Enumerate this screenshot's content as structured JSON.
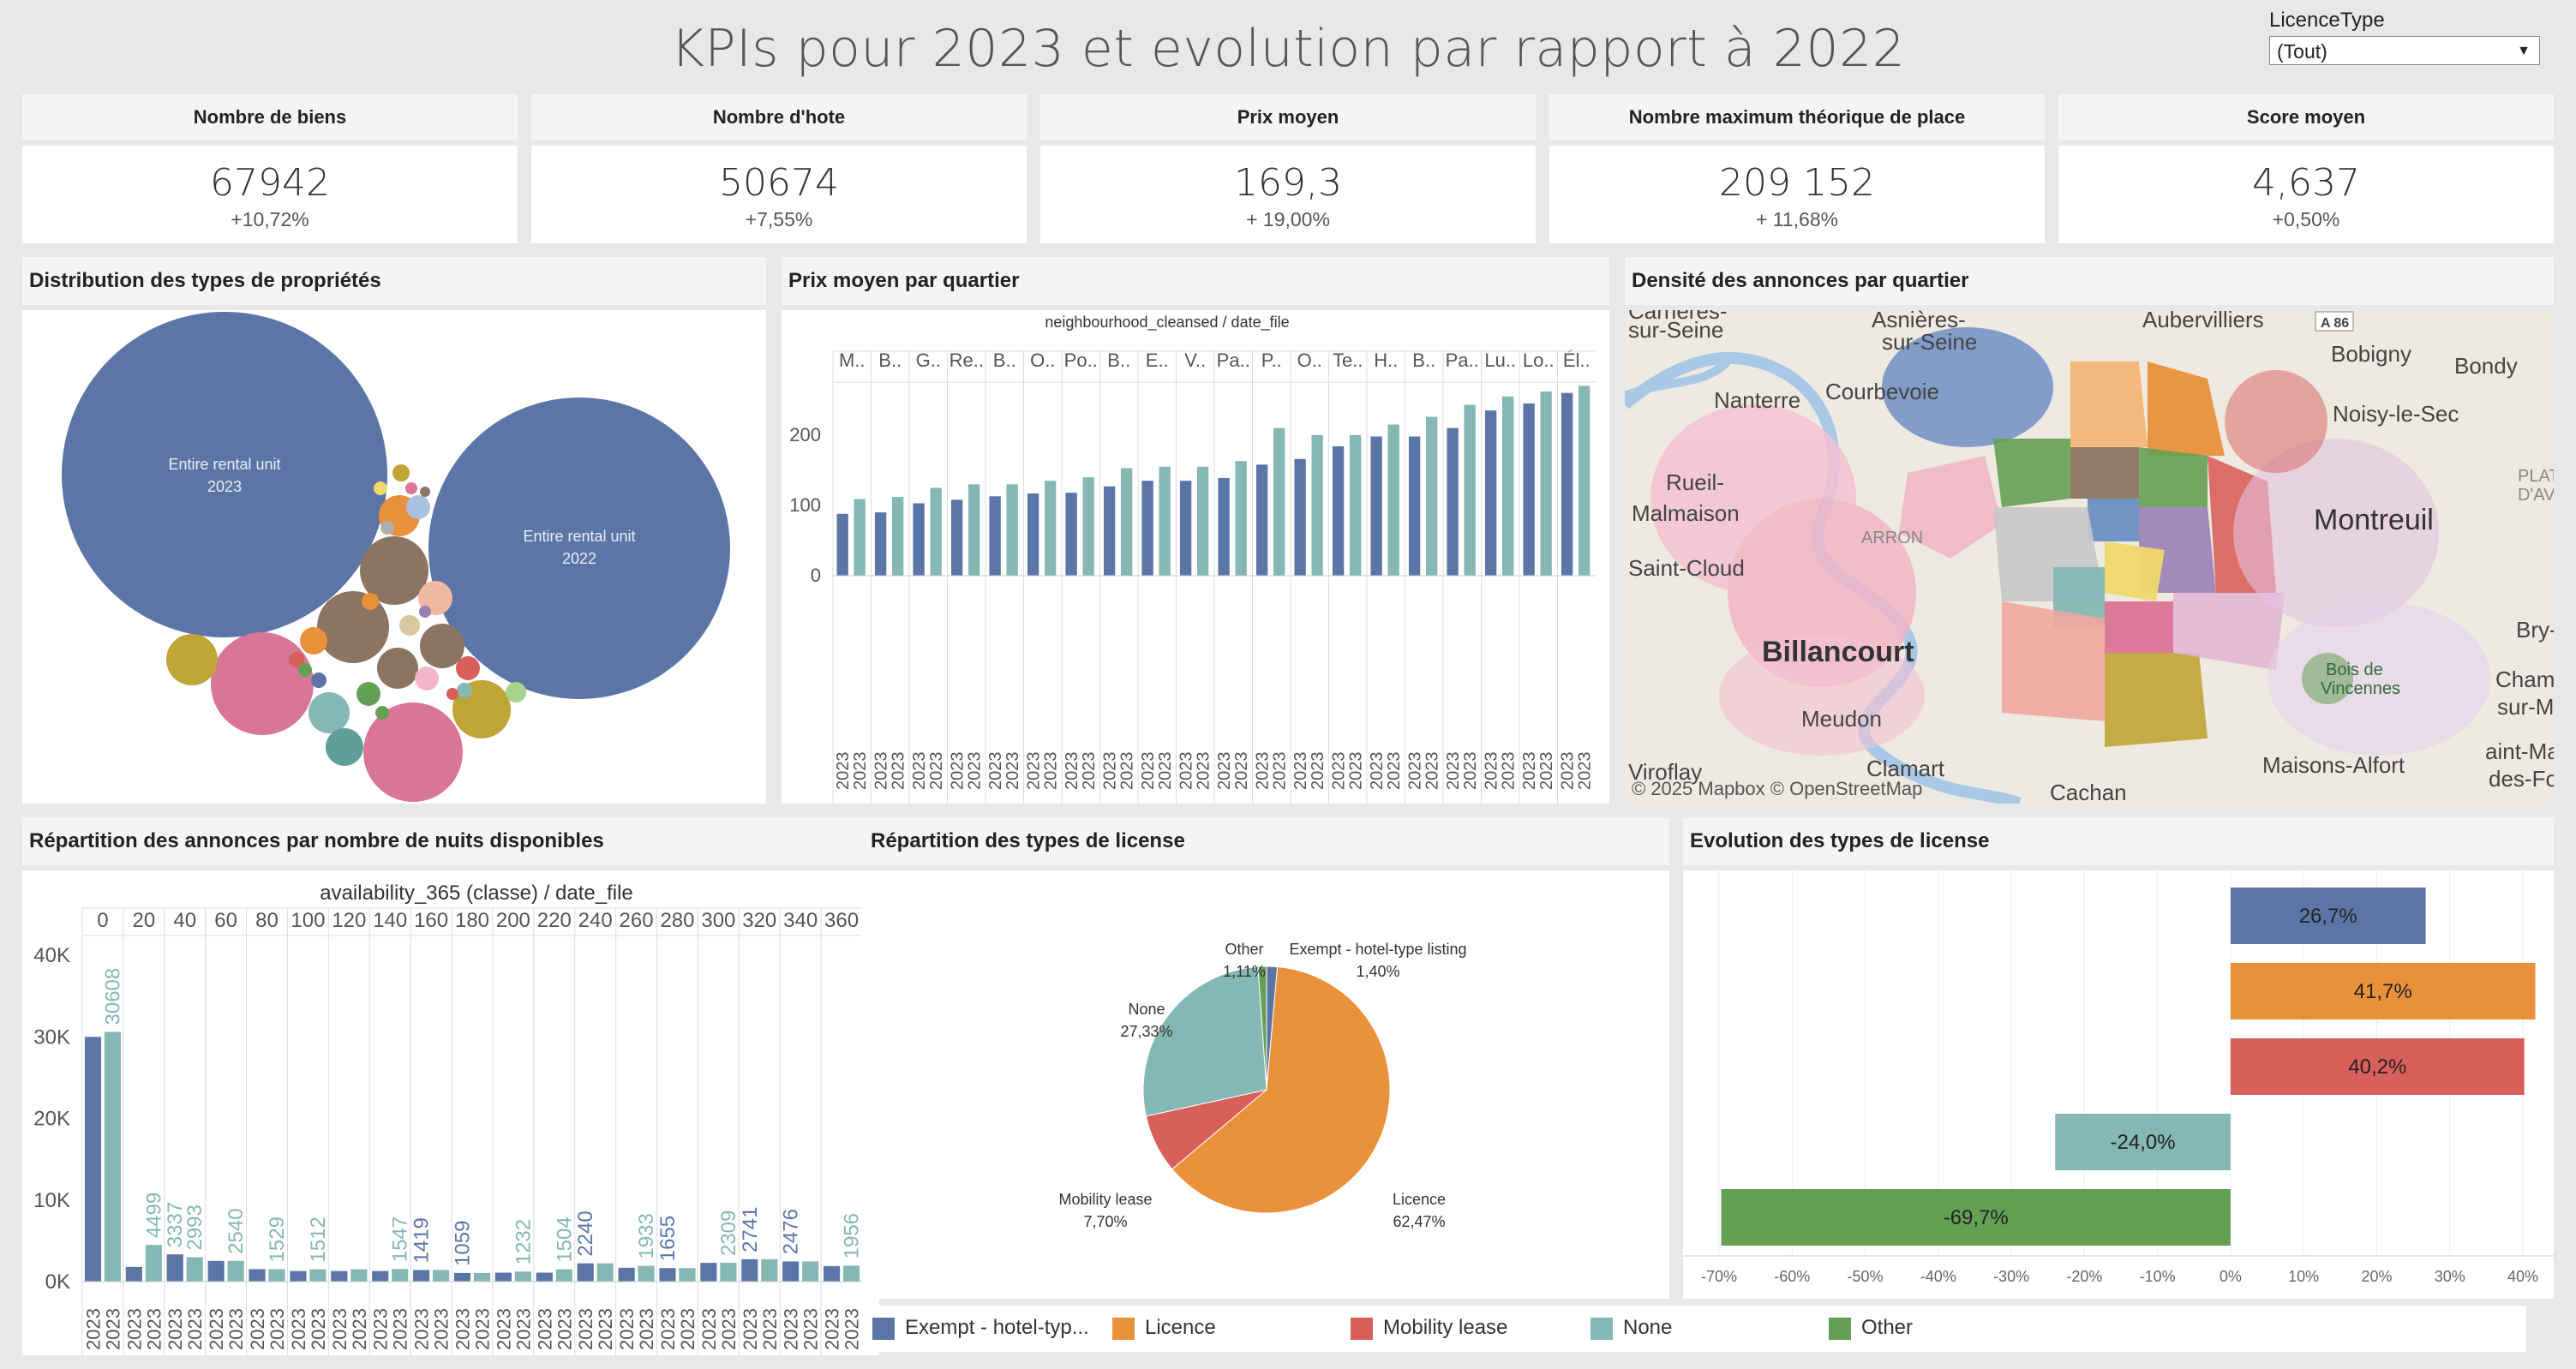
{
  "title": "KPIs pour 2023  et evolution par rapport à 2022",
  "filter": {
    "label": "LicenceType",
    "value": "(Tout)"
  },
  "kpis": [
    {
      "label": "Nombre de biens",
      "value": "67942",
      "delta": "+10,72%"
    },
    {
      "label": "Nombre d'hote",
      "value": "50674",
      "delta": "+7,55%"
    },
    {
      "label": "Prix moyen",
      "value": "169,3",
      "delta": "+ 19,00%"
    },
    {
      "label": "Nombre maximum théorique de place",
      "value": "209 152",
      "delta": "+ 11,68%"
    },
    {
      "label": "Score moyen",
      "value": "4,637",
      "delta": "+0,50%"
    }
  ],
  "panels": {
    "distribution": "Distribution des types de propriétés",
    "prix": "Prix moyen par quartier",
    "densite": "Densité des annonces par quartier",
    "nuits": "Répartition des annonces par nombre de nuits disponibles",
    "licence_pie": "Répartition des types de license",
    "licence_evo": "Evolution des types de license"
  },
  "bubbles": {
    "big2023": {
      "line1": "Entire rental unit",
      "line2": "2023"
    },
    "big2022": {
      "line1": "Entire rental unit",
      "line2": "2022"
    }
  },
  "map": {
    "attribution": "© 2025 Mapbox  © OpenStreetMap",
    "places": [
      "Asnières-",
      "sur-Seine",
      "Aubervilliers",
      "A 86",
      "Bobigny",
      "Bondy",
      "Nanterre",
      "Noisy-le-Sec",
      "Rueil-",
      "Malmaison",
      "PLAT",
      "D'AV",
      "Bry-su",
      "Bois de",
      "Vincennes",
      "Cham",
      "sur-M",
      "Meudon",
      "Viroflay",
      "Clamart",
      "Cachan",
      "Maisons-Alfort",
      "aint-Mau",
      "des-Fosse",
      "Carrières-",
      "sur-Seine",
      "Billancourt",
      "Montreuil",
      "Courbevoie",
      "Saint-Cloud",
      "ARRON"
    ]
  },
  "colors": {
    "blue": "#5b76a6",
    "teal": "#85b7b4",
    "orange": "#e8913a",
    "red": "#d95f5b",
    "green": "#64a054",
    "mustard": "#bfa436",
    "pink": "#d97595",
    "brown": "#8b7462"
  },
  "chart_data": [
    {
      "type": "bar",
      "title": "neighbourhood_cleansed  /  date_file",
      "categories": [
        "M..",
        "B..",
        "G..",
        "Re..",
        "B..",
        "O..",
        "Po..",
        "B..",
        "E..",
        "V..",
        "Pa..",
        "P..",
        "O..",
        "Te..",
        "H..",
        "B..",
        "Pa..",
        "Lu..",
        "Lo..",
        "Él.."
      ],
      "bar_year_label": "2023",
      "yticks": [
        "0",
        "100",
        "200"
      ],
      "ylim": [
        0,
        290
      ],
      "series": [
        {
          "values": [
            88,
            90,
            103,
            108,
            113,
            117,
            118,
            127,
            135,
            135,
            139,
            158,
            166,
            184,
            198,
            198,
            210,
            235,
            245,
            260
          ]
        },
        {
          "values": [
            109,
            112,
            125,
            130,
            130,
            135,
            140,
            153,
            155,
            155,
            163,
            210,
            200,
            200,
            215,
            226,
            243,
            255,
            262,
            270
          ]
        }
      ]
    },
    {
      "type": "bar",
      "title": "availability_365 (classe)  /  date_file",
      "categories": [
        "0",
        "20",
        "40",
        "60",
        "80",
        "100",
        "120",
        "140",
        "160",
        "180",
        "200",
        "220",
        "240",
        "260",
        "280",
        "300",
        "320",
        "340",
        "360"
      ],
      "bar_year_label": "2023",
      "yticks": [
        "0K",
        "10K",
        "20K",
        "30K",
        "40K"
      ],
      "ylim": [
        0,
        42000
      ],
      "series": [
        {
          "values": [
            30000,
            1800,
            3337,
            2540,
            1529,
            1300,
            1300,
            1300,
            1419,
            1059,
            1100,
            1100,
            2240,
            1700,
            1655,
            2300,
            2741,
            2476,
            1900
          ],
          "labels": [
            "",
            "",
            "",
            "",
            "",
            "",
            "",
            "",
            "1419",
            "1059",
            "",
            "",
            "2240",
            "",
            "1655",
            "",
            "2741",
            "2476",
            ""
          ]
        },
        {
          "values": [
            30608,
            4499,
            2993,
            2540,
            1529,
            1512,
            1512,
            1547,
            1419,
            1059,
            1232,
            1504,
            2240,
            1933,
            1655,
            2309,
            2741,
            2476,
            1956
          ],
          "labels": [
            "30608",
            "4499",
            "2993",
            "2540",
            "1529",
            "1512",
            "",
            "1547",
            "",
            "",
            "1232",
            "1504",
            "",
            "1933",
            "",
            "2309",
            "",
            "",
            "1956"
          ]
        }
      ],
      "extra_labels": {
        "40": "3337"
      }
    },
    {
      "type": "pie",
      "slices": [
        {
          "name": "Exempt - hotel-type listing",
          "value": 1.4,
          "label": "1,40%",
          "color": "#5b76a6"
        },
        {
          "name": "Licence",
          "value": 62.47,
          "label": "62,47%",
          "color": "#e8913a"
        },
        {
          "name": "Mobility lease",
          "value": 7.7,
          "label": "7,70%",
          "color": "#d95f5b"
        },
        {
          "name": "None",
          "value": 27.33,
          "label": "27,33%",
          "color": "#85b7b4"
        },
        {
          "name": "Other",
          "value": 1.11,
          "label": "1,11%",
          "color": "#64a054"
        }
      ]
    },
    {
      "type": "bar",
      "orientation": "horizontal",
      "categories": [
        "Exempt - hotel-type listing",
        "Licence",
        "Mobility lease",
        "None",
        "Other"
      ],
      "values": [
        26.7,
        41.7,
        40.2,
        -24.0,
        -69.7
      ],
      "labels": [
        "26,7%",
        "41,7%",
        "40,2%",
        "-24,0%",
        "-69,7%"
      ],
      "xticks": [
        "-70%",
        "-60%",
        "-50%",
        "-40%",
        "-30%",
        "-20%",
        "-10%",
        "0%",
        "10%",
        "20%",
        "30%",
        "40%"
      ],
      "xlim": [
        -70,
        40
      ]
    }
  ],
  "legend": [
    {
      "label": "Exempt - hotel-typ...",
      "color": "#5b76a6"
    },
    {
      "label": "Licence",
      "color": "#e8913a"
    },
    {
      "label": "Mobility lease",
      "color": "#d95f5b"
    },
    {
      "label": "None",
      "color": "#85b7b4"
    },
    {
      "label": "Other",
      "color": "#64a054"
    }
  ]
}
